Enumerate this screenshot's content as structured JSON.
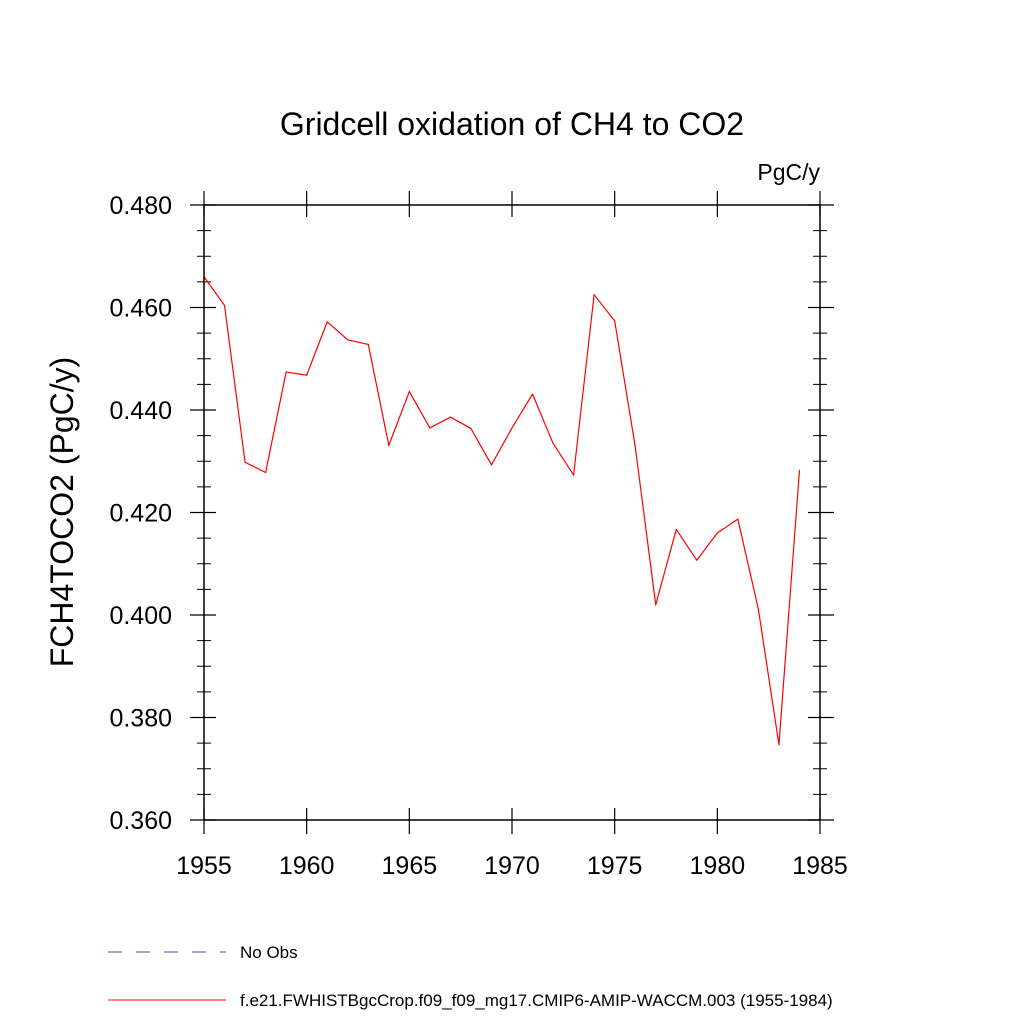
{
  "chart_data": {
    "type": "line",
    "title": "Gridcell oxidation of CH4 to CO2",
    "units_label": "PgC/y",
    "xlabel": "",
    "ylabel": "FCH4TOCO2  (PgC/y)",
    "xlim": [
      1955,
      1985
    ],
    "ylim": [
      0.36,
      0.48
    ],
    "xticks": [
      1955,
      1960,
      1965,
      1970,
      1975,
      1980,
      1985
    ],
    "xtick_labels": [
      "1955",
      "1960",
      "1965",
      "1970",
      "1975",
      "1980",
      "1985"
    ],
    "yticks": [
      0.36,
      0.38,
      0.4,
      0.42,
      0.44,
      0.46,
      0.48
    ],
    "ytick_labels": [
      "0.360",
      "0.380",
      "0.400",
      "0.420",
      "0.440",
      "0.460",
      "0.480"
    ],
    "grid": false,
    "legend_position": "bottom",
    "series": [
      {
        "name": "f.e21.FWHISTBgcCrop.f09_f09_mg17.CMIP6-AMIP-WACCM.003 (1955-1984)",
        "color": "#ff0000",
        "style": "solid",
        "x": [
          1955,
          1956,
          1957,
          1958,
          1959,
          1960,
          1961,
          1962,
          1963,
          1964,
          1965,
          1966,
          1967,
          1968,
          1969,
          1970,
          1971,
          1972,
          1973,
          1974,
          1975,
          1976,
          1977,
          1978,
          1979,
          1980,
          1981,
          1982,
          1983,
          1984
        ],
        "values": [
          0.466,
          0.4604,
          0.4298,
          0.4278,
          0.4474,
          0.4468,
          0.4572,
          0.4537,
          0.4528,
          0.4331,
          0.4436,
          0.4365,
          0.4386,
          0.4364,
          0.4293,
          0.4365,
          0.4431,
          0.4335,
          0.4273,
          0.4625,
          0.4574,
          0.4329,
          0.402,
          0.4167,
          0.4107,
          0.416,
          0.4187,
          0.4011,
          0.3747,
          0.4282
        ]
      }
    ],
    "legend": [
      {
        "label": "No Obs",
        "color": "#5544aa",
        "style": "dashed"
      },
      {
        "label": "f.e21.FWHISTBgcCrop.f09_f09_mg17.CMIP6-AMIP-WACCM.003 (1955-1984)",
        "color": "#ff0000",
        "style": "solid"
      }
    ]
  }
}
